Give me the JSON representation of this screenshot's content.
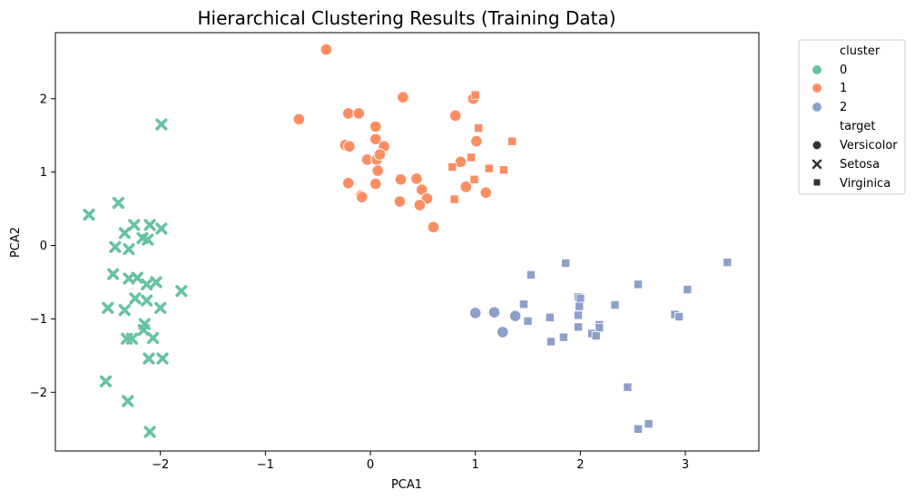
{
  "chart_data": {
    "type": "scatter",
    "title": "Hierarchical Clustering Results (Training Data)",
    "xlabel": "PCA1",
    "ylabel": "PCA2",
    "xlim": [
      -3.0,
      3.7
    ],
    "ylim": [
      -2.8,
      2.9
    ],
    "xticks": [
      -2,
      -1,
      0,
      1,
      2,
      3
    ],
    "yticks": [
      -2,
      -1,
      0,
      1,
      2
    ],
    "xtick_labels": [
      "−2",
      "−1",
      "0",
      "1",
      "2",
      "3"
    ],
    "ytick_labels": [
      "−2",
      "−1",
      "0",
      "1",
      "2"
    ],
    "grid": false,
    "legend_placement": "outside-right-top",
    "colors": {
      "0": "#66c2a5",
      "1": "#fc8d62",
      "2": "#8da0cb"
    },
    "legend": {
      "hue_title": "cluster",
      "hue_labels": [
        "0",
        "1",
        "2"
      ],
      "style_title": "target",
      "style_labels": [
        "Versicolor",
        "Setosa",
        "Virginica"
      ]
    },
    "series": [
      {
        "cluster": "0",
        "target": "Setosa",
        "marker": "x",
        "points": [
          [
            -2.68,
            0.42
          ],
          [
            -2.4,
            0.58
          ],
          [
            -1.99,
            1.65
          ],
          [
            -2.25,
            0.28
          ],
          [
            -2.1,
            0.28
          ],
          [
            -1.99,
            0.23
          ],
          [
            -2.34,
            0.17
          ],
          [
            -2.17,
            0.1
          ],
          [
            -2.12,
            0.08
          ],
          [
            -2.43,
            -0.02
          ],
          [
            -2.3,
            -0.05
          ],
          [
            -2.45,
            -0.39
          ],
          [
            -2.3,
            -0.45
          ],
          [
            -2.22,
            -0.44
          ],
          [
            -2.13,
            -0.53
          ],
          [
            -2.04,
            -0.5
          ],
          [
            -1.8,
            -0.62
          ],
          [
            -2.24,
            -0.72
          ],
          [
            -2.13,
            -0.75
          ],
          [
            -2.5,
            -0.85
          ],
          [
            -2.34,
            -0.88
          ],
          [
            -2.0,
            -0.85
          ],
          [
            -2.15,
            -1.07
          ],
          [
            -2.16,
            -1.15
          ],
          [
            -2.32,
            -1.27
          ],
          [
            -2.27,
            -1.27
          ],
          [
            -2.07,
            -1.26
          ],
          [
            -2.11,
            -1.54
          ],
          [
            -1.98,
            -1.54
          ],
          [
            -2.52,
            -1.85
          ],
          [
            -2.31,
            -2.12
          ],
          [
            -2.1,
            -2.54
          ]
        ]
      },
      {
        "cluster": "1",
        "target": "Versicolor",
        "marker": "o",
        "points": [
          [
            -0.42,
            2.67
          ],
          [
            0.31,
            2.02
          ],
          [
            -0.68,
            1.72
          ],
          [
            -0.21,
            1.8
          ],
          [
            -0.11,
            1.8
          ],
          [
            0.05,
            1.62
          ],
          [
            0.05,
            1.45
          ],
          [
            -0.24,
            1.37
          ],
          [
            -0.2,
            1.35
          ],
          [
            0.13,
            1.35
          ],
          [
            -0.03,
            1.17
          ],
          [
            0.06,
            1.17
          ],
          [
            0.09,
            1.24
          ],
          [
            0.07,
            1.02
          ],
          [
            0.44,
            0.91
          ],
          [
            0.29,
            0.9
          ],
          [
            -0.21,
            0.85
          ],
          [
            0.05,
            0.84
          ],
          [
            0.49,
            0.76
          ],
          [
            -0.09,
            0.68
          ],
          [
            -0.08,
            0.66
          ],
          [
            0.54,
            0.64
          ],
          [
            0.28,
            0.6
          ],
          [
            0.47,
            0.55
          ],
          [
            0.6,
            0.25
          ],
          [
            0.81,
            1.77
          ],
          [
            0.98,
            2.0
          ],
          [
            1.01,
            1.42
          ],
          [
            0.86,
            1.14
          ],
          [
            0.91,
            0.8
          ],
          [
            1.1,
            0.72
          ]
        ]
      },
      {
        "cluster": "1",
        "target": "Virginica",
        "marker": "s",
        "points": [
          [
            1.0,
            2.05
          ],
          [
            1.03,
            1.6
          ],
          [
            1.35,
            1.42
          ],
          [
            0.96,
            1.2
          ],
          [
            0.78,
            1.07
          ],
          [
            1.13,
            1.05
          ],
          [
            1.27,
            1.03
          ],
          [
            0.99,
            0.9
          ],
          [
            0.8,
            0.63
          ]
        ]
      },
      {
        "cluster": "2",
        "target": "Versicolor",
        "marker": "o",
        "points": [
          [
            1.0,
            -0.92
          ],
          [
            1.18,
            -0.91
          ],
          [
            1.38,
            -0.96
          ],
          [
            1.26,
            -1.18
          ]
        ]
      },
      {
        "cluster": "2",
        "target": "Virginica",
        "marker": "s",
        "points": [
          [
            3.4,
            -0.23
          ],
          [
            1.86,
            -0.24
          ],
          [
            1.53,
            -0.4
          ],
          [
            2.55,
            -0.53
          ],
          [
            3.02,
            -0.6
          ],
          [
            1.98,
            -0.7
          ],
          [
            2.0,
            -0.72
          ],
          [
            1.46,
            -0.8
          ],
          [
            2.33,
            -0.81
          ],
          [
            1.99,
            -0.83
          ],
          [
            1.98,
            -0.95
          ],
          [
            2.9,
            -0.94
          ],
          [
            2.94,
            -0.97
          ],
          [
            1.71,
            -0.98
          ],
          [
            1.5,
            -1.03
          ],
          [
            2.18,
            -1.08
          ],
          [
            1.98,
            -1.11
          ],
          [
            2.18,
            -1.12
          ],
          [
            2.11,
            -1.2
          ],
          [
            2.15,
            -1.23
          ],
          [
            1.84,
            -1.25
          ],
          [
            1.72,
            -1.31
          ],
          [
            2.45,
            -1.93
          ],
          [
            2.65,
            -2.43
          ],
          [
            2.55,
            -2.5
          ]
        ]
      }
    ]
  }
}
